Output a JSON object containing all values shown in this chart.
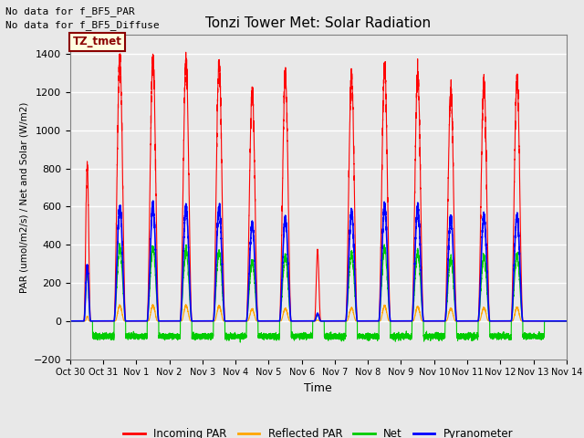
{
  "title": "Tonzi Tower Met: Solar Radiation",
  "ylabel": "PAR (umol/m2/s) / Net and Solar (W/m2)",
  "xlabel": "Time",
  "text_no_data_1": "No data for f_BF5_PAR",
  "text_no_data_2": "No data for f_BF5_Diffuse",
  "tz_label": "TZ_tmet",
  "ylim": [
    -200,
    1500
  ],
  "yticks": [
    -200,
    0,
    200,
    400,
    600,
    800,
    1000,
    1200,
    1400
  ],
  "legend_labels": [
    "Incoming PAR",
    "Reflected PAR",
    "Net",
    "Pyranometer"
  ],
  "colors": {
    "incoming_par": "#FF0000",
    "reflected_par": "#FFA500",
    "net": "#00CC00",
    "pyranometer": "#0000FF"
  },
  "background_color": "#E8E8E8",
  "num_days": 15,
  "x_tick_labels": [
    "Oct 30",
    "Oct 31",
    "Nov 1",
    "Nov 2",
    "Nov 3",
    "Nov 4",
    "Nov 5",
    "Nov 6",
    "Nov 7",
    "Nov 8",
    "Nov 9",
    "Nov 10",
    "Nov 11",
    "Nov 12",
    "Nov 13",
    "Nov 14"
  ],
  "day_peaks_incoming": [
    820,
    1370,
    1370,
    1360,
    1350,
    1200,
    1280,
    370,
    1280,
    1330,
    1300,
    1210,
    1250,
    1260,
    0
  ],
  "day_peaks_pyranometer": [
    290,
    595,
    600,
    600,
    590,
    510,
    540,
    40,
    575,
    600,
    595,
    540,
    550,
    555,
    0
  ],
  "day_peaks_net": [
    250,
    380,
    380,
    370,
    365,
    310,
    340,
    35,
    355,
    380,
    360,
    330,
    340,
    345,
    0
  ],
  "day_peaks_reflected": [
    25,
    80,
    82,
    80,
    78,
    62,
    65,
    5,
    68,
    80,
    75,
    65,
    70,
    70,
    0
  ],
  "night_neg": -80
}
